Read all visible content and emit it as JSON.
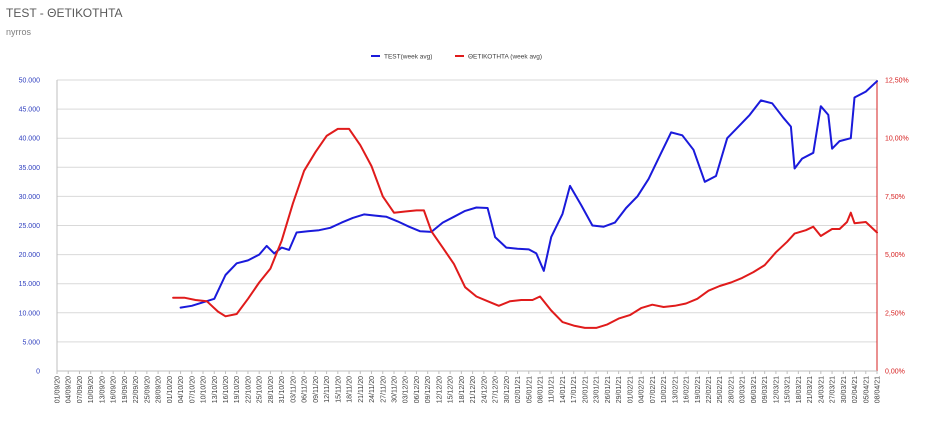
{
  "header": {
    "title": "TEST - ΘΕΤΙΚΟΤΗΤΑ",
    "subtitle": "nyrros"
  },
  "chart_data": {
    "type": "line",
    "title": "TEST - ΘΕΤΙΚΟΤΗΤΑ",
    "subtitle": "nyrros",
    "legend_position": "top",
    "grid": true,
    "colors": {
      "test": "#1a1adb",
      "positivity": "#e01b1b",
      "left_axis": "#2f3fbf",
      "right_axis": "#d62020"
    },
    "y_left": {
      "ticks": [
        "0",
        "5.000",
        "10.000",
        "15.000",
        "20.000",
        "25.000",
        "30.000",
        "35.000",
        "40.000",
        "45.000",
        "50.000"
      ],
      "ylim": [
        0,
        50000
      ]
    },
    "y_right": {
      "ticks": [
        "0,00%",
        "2,50%",
        "5,00%",
        "7,50%",
        "10,00%",
        "12,50%"
      ],
      "ylim": [
        0,
        12.5
      ]
    },
    "x_date_range": [
      "2020-09-01",
      "2021-04-08"
    ],
    "x_tick_labels": [
      "01/09/20",
      "04/09/20",
      "07/09/20",
      "10/09/20",
      "13/09/20",
      "16/09/20",
      "19/09/20",
      "22/09/20",
      "25/09/20",
      "28/09/20",
      "01/10/20",
      "04/10/20",
      "07/10/20",
      "10/10/20",
      "13/10/20",
      "16/10/20",
      "19/10/20",
      "22/10/20",
      "25/10/20",
      "28/10/20",
      "31/10/20",
      "03/11/20",
      "06/11/20",
      "09/11/20",
      "12/11/20",
      "15/11/20",
      "18/11/20",
      "21/11/20",
      "24/11/20",
      "27/11/20",
      "30/11/20",
      "03/12/20",
      "06/12/20",
      "09/12/20",
      "12/12/20",
      "15/12/20",
      "18/12/20",
      "21/12/20",
      "24/12/20",
      "27/12/20",
      "30/12/20",
      "02/01/21",
      "05/01/21",
      "08/01/21",
      "11/01/21",
      "14/01/21",
      "17/01/21",
      "20/01/21",
      "23/01/21",
      "26/01/21",
      "29/01/21",
      "01/02/21",
      "04/02/21",
      "07/02/21",
      "10/02/21",
      "13/02/21",
      "16/02/21",
      "19/02/21",
      "22/02/21",
      "25/02/21",
      "28/02/21",
      "03/03/21",
      "06/03/21",
      "09/03/21",
      "12/03/21",
      "15/03/21",
      "18/03/21",
      "21/03/21",
      "24/03/21",
      "27/03/21",
      "30/03/21",
      "02/04/21",
      "05/04/21",
      "08/04/21"
    ],
    "series": [
      {
        "name": "TEST(week avg)",
        "axis": "left",
        "points": [
          [
            "2020-10-04",
            10900
          ],
          [
            "2020-10-07",
            11200
          ],
          [
            "2020-10-10",
            11800
          ],
          [
            "2020-10-13",
            12400
          ],
          [
            "2020-10-16",
            16500
          ],
          [
            "2020-10-19",
            18500
          ],
          [
            "2020-10-22",
            19000
          ],
          [
            "2020-10-25",
            20000
          ],
          [
            "2020-10-27",
            21500
          ],
          [
            "2020-10-29",
            20200
          ],
          [
            "2020-10-31",
            21200
          ],
          [
            "2020-11-02",
            20800
          ],
          [
            "2020-11-04",
            23800
          ],
          [
            "2020-11-07",
            24000
          ],
          [
            "2020-11-10",
            24200
          ],
          [
            "2020-11-13",
            24600
          ],
          [
            "2020-11-16",
            25500
          ],
          [
            "2020-11-19",
            26300
          ],
          [
            "2020-11-22",
            26900
          ],
          [
            "2020-11-25",
            26700
          ],
          [
            "2020-11-28",
            26500
          ],
          [
            "2020-12-01",
            25700
          ],
          [
            "2020-12-04",
            24800
          ],
          [
            "2020-12-07",
            24000
          ],
          [
            "2020-12-10",
            23900
          ],
          [
            "2020-12-13",
            25500
          ],
          [
            "2020-12-16",
            26500
          ],
          [
            "2020-12-19",
            27500
          ],
          [
            "2020-12-22",
            28100
          ],
          [
            "2020-12-25",
            28000
          ],
          [
            "2020-12-27",
            23000
          ],
          [
            "2020-12-30",
            21200
          ],
          [
            "2021-01-02",
            21000
          ],
          [
            "2021-01-05",
            20900
          ],
          [
            "2021-01-07",
            20200
          ],
          [
            "2021-01-09",
            17200
          ],
          [
            "2021-01-11",
            23000
          ],
          [
            "2021-01-14",
            27000
          ],
          [
            "2021-01-16",
            31800
          ],
          [
            "2021-01-19",
            28500
          ],
          [
            "2021-01-22",
            25000
          ],
          [
            "2021-01-25",
            24800
          ],
          [
            "2021-01-28",
            25500
          ],
          [
            "2021-01-31",
            28000
          ],
          [
            "2021-02-03",
            30000
          ],
          [
            "2021-02-06",
            33000
          ],
          [
            "2021-02-09",
            37000
          ],
          [
            "2021-02-12",
            41000
          ],
          [
            "2021-02-15",
            40500
          ],
          [
            "2021-02-18",
            38000
          ],
          [
            "2021-02-21",
            32500
          ],
          [
            "2021-02-24",
            33500
          ],
          [
            "2021-02-27",
            40000
          ],
          [
            "2021-03-02",
            42000
          ],
          [
            "2021-03-05",
            44000
          ],
          [
            "2021-03-08",
            46500
          ],
          [
            "2021-03-11",
            46000
          ],
          [
            "2021-03-14",
            43500
          ],
          [
            "2021-03-16",
            42000
          ],
          [
            "2021-03-17",
            34800
          ],
          [
            "2021-03-19",
            36500
          ],
          [
            "2021-03-22",
            37500
          ],
          [
            "2021-03-24",
            45500
          ],
          [
            "2021-03-26",
            44000
          ],
          [
            "2021-03-27",
            38200
          ],
          [
            "2021-03-29",
            39500
          ],
          [
            "2021-04-01",
            40000
          ],
          [
            "2021-04-02",
            47000
          ],
          [
            "2021-04-05",
            48000
          ],
          [
            "2021-04-08",
            49800
          ]
        ]
      },
      {
        "name": "ΘΕΤΙΚΟΤΗΤΑ (week avg)",
        "axis": "right",
        "points": [
          [
            "2020-10-02",
            3.15
          ],
          [
            "2020-10-05",
            3.15
          ],
          [
            "2020-10-08",
            3.05
          ],
          [
            "2020-10-11",
            3.0
          ],
          [
            "2020-10-14",
            2.55
          ],
          [
            "2020-10-16",
            2.35
          ],
          [
            "2020-10-19",
            2.45
          ],
          [
            "2020-10-22",
            3.1
          ],
          [
            "2020-10-25",
            3.8
          ],
          [
            "2020-10-28",
            4.4
          ],
          [
            "2020-10-31",
            5.6
          ],
          [
            "2020-11-03",
            7.2
          ],
          [
            "2020-11-06",
            8.6
          ],
          [
            "2020-11-09",
            9.4
          ],
          [
            "2020-11-12",
            10.1
          ],
          [
            "2020-11-15",
            10.4
          ],
          [
            "2020-11-18",
            10.4
          ],
          [
            "2020-11-21",
            9.7
          ],
          [
            "2020-11-24",
            8.8
          ],
          [
            "2020-11-27",
            7.5
          ],
          [
            "2020-11-30",
            6.8
          ],
          [
            "2020-12-03",
            6.85
          ],
          [
            "2020-12-06",
            6.9
          ],
          [
            "2020-12-08",
            6.9
          ],
          [
            "2020-12-10",
            6.0
          ],
          [
            "2020-12-13",
            5.3
          ],
          [
            "2020-12-16",
            4.6
          ],
          [
            "2020-12-19",
            3.6
          ],
          [
            "2020-12-22",
            3.2
          ],
          [
            "2020-12-25",
            3.0
          ],
          [
            "2020-12-28",
            2.8
          ],
          [
            "2020-12-31",
            3.0
          ],
          [
            "2021-01-03",
            3.05
          ],
          [
            "2021-01-06",
            3.05
          ],
          [
            "2021-01-08",
            3.2
          ],
          [
            "2021-01-11",
            2.6
          ],
          [
            "2021-01-14",
            2.1
          ],
          [
            "2021-01-17",
            1.95
          ],
          [
            "2021-01-20",
            1.85
          ],
          [
            "2021-01-23",
            1.85
          ],
          [
            "2021-01-26",
            2.0
          ],
          [
            "2021-01-29",
            2.25
          ],
          [
            "2021-02-01",
            2.4
          ],
          [
            "2021-02-04",
            2.7
          ],
          [
            "2021-02-07",
            2.85
          ],
          [
            "2021-02-10",
            2.75
          ],
          [
            "2021-02-13",
            2.8
          ],
          [
            "2021-02-16",
            2.9
          ],
          [
            "2021-02-19",
            3.1
          ],
          [
            "2021-02-22",
            3.45
          ],
          [
            "2021-02-25",
            3.65
          ],
          [
            "2021-02-28",
            3.8
          ],
          [
            "2021-03-03",
            4.0
          ],
          [
            "2021-03-06",
            4.25
          ],
          [
            "2021-03-09",
            4.55
          ],
          [
            "2021-03-12",
            5.1
          ],
          [
            "2021-03-15",
            5.55
          ],
          [
            "2021-03-17",
            5.9
          ],
          [
            "2021-03-20",
            6.05
          ],
          [
            "2021-03-22",
            6.2
          ],
          [
            "2021-03-24",
            5.8
          ],
          [
            "2021-03-27",
            6.1
          ],
          [
            "2021-03-29",
            6.1
          ],
          [
            "2021-03-31",
            6.4
          ],
          [
            "2021-04-01",
            6.8
          ],
          [
            "2021-04-02",
            6.35
          ],
          [
            "2021-04-05",
            6.4
          ],
          [
            "2021-04-08",
            5.95
          ]
        ]
      }
    ]
  }
}
